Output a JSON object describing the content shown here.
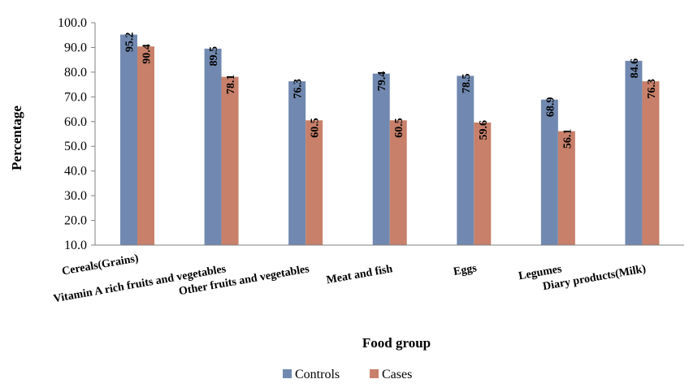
{
  "chart_data": {
    "type": "bar",
    "title": "",
    "xlabel": "Food group",
    "ylabel": "Percentage",
    "ylim": [
      10,
      100
    ],
    "yticks": [
      "10.0",
      "20.0",
      "30.0",
      "40.0",
      "50.0",
      "60.0",
      "70.0",
      "80.0",
      "90.0",
      "100.0"
    ],
    "categories": [
      "Cereals(Grains)",
      "Vitamin A rich fruits and vegetables",
      "Other fruits and vegetables",
      "Meat and fish",
      "Eggs",
      "Legumes",
      "Diary products(Milk)"
    ],
    "series": [
      {
        "name": "Controls",
        "color": "#7189b0",
        "values": [
          95.2,
          89.5,
          76.3,
          79.4,
          78.5,
          68.9,
          84.6
        ],
        "labels": [
          "95.2",
          "89.5",
          "76.3",
          "79.4",
          "78.5",
          "68.9",
          "84.6"
        ]
      },
      {
        "name": "Cases",
        "color": "#c8806a",
        "values": [
          90.4,
          78.1,
          60.5,
          60.5,
          59.6,
          56.1,
          76.3
        ],
        "labels": [
          "90.4",
          "78.1",
          "60.5",
          "60.5",
          "59.6",
          "56.1",
          "76.3"
        ]
      }
    ],
    "grid": false,
    "legend": "bottom"
  }
}
